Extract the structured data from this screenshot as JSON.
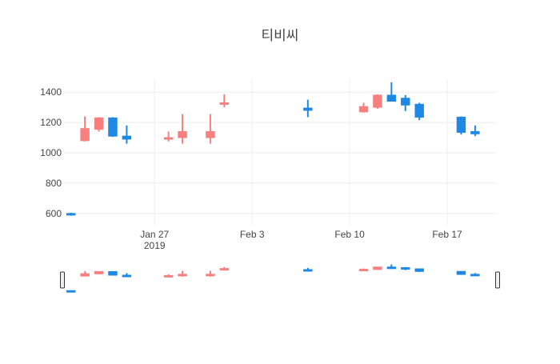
{
  "chart_data": {
    "type": "candlestick",
    "title": "티비씨",
    "xlabel": "",
    "ylabel": "",
    "ylim": [
      520,
      1480
    ],
    "x_tick_labels": [
      {
        "date": "2019-01-27",
        "label": "Jan 27",
        "sublabel": "2019"
      },
      {
        "date": "2019-02-03",
        "label": "Feb 3",
        "sublabel": ""
      },
      {
        "date": "2019-02-10",
        "label": "Feb 10",
        "sublabel": ""
      },
      {
        "date": "2019-02-17",
        "label": "Feb 17",
        "sublabel": ""
      }
    ],
    "y_ticks": [
      600,
      800,
      1000,
      1200,
      1400
    ],
    "grid": true,
    "range_slider": true,
    "increasing_color": "#F7807F",
    "decreasing_color": "#1E88E5",
    "candles": [
      {
        "date": "2019-01-21",
        "open": 600,
        "high": 605,
        "low": 585,
        "close": 590
      },
      {
        "date": "2019-01-22",
        "open": 1080,
        "high": 1240,
        "low": 1075,
        "close": 1160
      },
      {
        "date": "2019-01-23",
        "open": 1155,
        "high": 1235,
        "low": 1140,
        "close": 1230
      },
      {
        "date": "2019-01-24",
        "open": 1230,
        "high": 1235,
        "low": 1105,
        "close": 1110
      },
      {
        "date": "2019-01-25",
        "open": 1110,
        "high": 1180,
        "low": 1060,
        "close": 1090
      },
      {
        "date": "2019-01-28",
        "open": 1090,
        "high": 1140,
        "low": 1075,
        "close": 1100
      },
      {
        "date": "2019-01-29",
        "open": 1100,
        "high": 1255,
        "low": 1060,
        "close": 1140
      },
      {
        "date": "2019-01-31",
        "open": 1100,
        "high": 1255,
        "low": 1060,
        "close": 1140
      },
      {
        "date": "2019-02-01",
        "open": 1320,
        "high": 1385,
        "low": 1300,
        "close": 1330
      },
      {
        "date": "2019-02-07",
        "open": 1295,
        "high": 1350,
        "low": 1235,
        "close": 1280
      },
      {
        "date": "2019-02-11",
        "open": 1270,
        "high": 1330,
        "low": 1265,
        "close": 1305
      },
      {
        "date": "2019-02-12",
        "open": 1300,
        "high": 1385,
        "low": 1290,
        "close": 1380
      },
      {
        "date": "2019-02-13",
        "open": 1380,
        "high": 1465,
        "low": 1340,
        "close": 1340
      },
      {
        "date": "2019-02-14",
        "open": 1360,
        "high": 1380,
        "low": 1275,
        "close": 1315
      },
      {
        "date": "2019-02-15",
        "open": 1320,
        "high": 1330,
        "low": 1215,
        "close": 1235
      },
      {
        "date": "2019-02-18",
        "open": 1235,
        "high": 1240,
        "low": 1120,
        "close": 1135
      },
      {
        "date": "2019-02-19",
        "open": 1140,
        "high": 1180,
        "low": 1110,
        "close": 1125
      }
    ]
  }
}
